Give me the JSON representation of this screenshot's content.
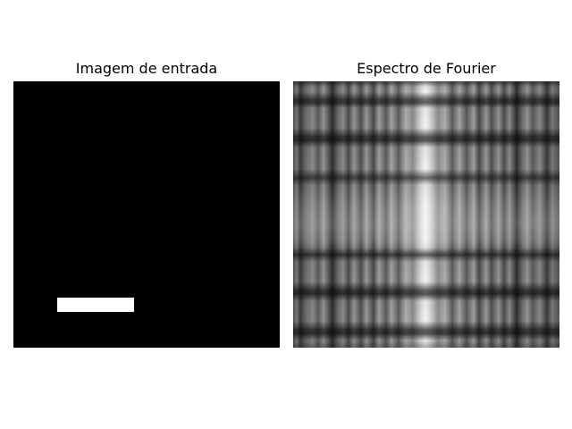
{
  "figure": {
    "panels": [
      {
        "title": "Imagem de entrada"
      },
      {
        "title": "Espectro de Fourier"
      }
    ]
  },
  "colors": {
    "background": "#ffffff",
    "input_image_background": "#000000",
    "input_rectangle": "#ffffff",
    "spectrum_center": "#f5f5f5",
    "spectrum_mid": "#8a8a8a",
    "spectrum_dark": "#2e2e2e"
  }
}
